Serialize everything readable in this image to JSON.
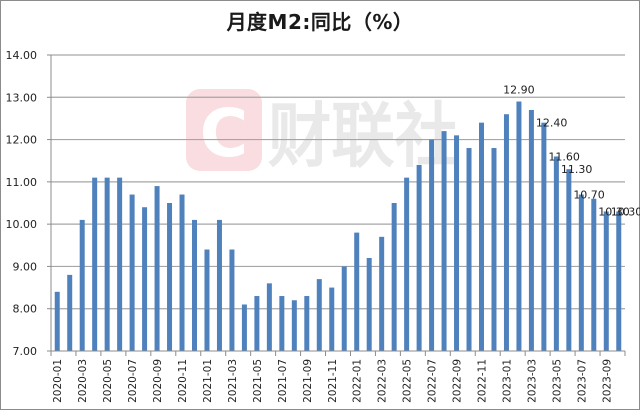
{
  "chart_data": {
    "type": "bar",
    "title": "月度M2:同比（%）",
    "xlabel": "",
    "ylabel": "",
    "ylim": [
      7,
      14
    ],
    "yticks": [
      "7.00",
      "8.00",
      "9.00",
      "10.00",
      "11.00",
      "12.00",
      "13.00",
      "14.00"
    ],
    "grid": true,
    "legend": null,
    "bar_color": "#4F81BD",
    "categories": [
      "2020-01",
      "2020-02",
      "2020-03",
      "2020-04",
      "2020-05",
      "2020-06",
      "2020-07",
      "2020-08",
      "2020-09",
      "2020-10",
      "2020-11",
      "2020-12",
      "2021-01",
      "2021-02",
      "2021-03",
      "2021-04",
      "2021-05",
      "2021-06",
      "2021-07",
      "2021-08",
      "2021-09",
      "2021-10",
      "2021-11",
      "2021-12",
      "2022-01",
      "2022-02",
      "2022-03",
      "2022-04",
      "2022-05",
      "2022-06",
      "2022-07",
      "2022-08",
      "2022-09",
      "2022-10",
      "2022-11",
      "2022-12",
      "2023-01",
      "2023-02",
      "2023-03",
      "2023-04",
      "2023-05",
      "2023-06",
      "2023-07",
      "2023-08",
      "2023-09",
      "2023-10"
    ],
    "values": [
      8.4,
      8.8,
      10.1,
      11.1,
      11.1,
      11.1,
      10.7,
      10.4,
      10.9,
      10.5,
      10.7,
      10.1,
      9.4,
      10.1,
      9.4,
      8.1,
      8.3,
      8.6,
      8.3,
      8.2,
      8.3,
      8.7,
      8.5,
      9.0,
      9.8,
      9.2,
      9.7,
      10.5,
      11.1,
      11.4,
      12.0,
      12.2,
      12.1,
      11.8,
      12.4,
      11.8,
      12.6,
      12.9,
      12.7,
      12.4,
      11.6,
      11.3,
      10.7,
      10.6,
      10.3,
      10.3
    ],
    "x_tick_labels_shown_every": 2,
    "data_labels": [
      {
        "category": "2023-02",
        "text": "12.90"
      },
      {
        "category": "2023-04",
        "text": "12.40"
      },
      {
        "category": "2023-05",
        "text": "11.60"
      },
      {
        "category": "2023-06",
        "text": "11.30"
      },
      {
        "category": "2023-07",
        "text": "10.70"
      },
      {
        "category": "2023-09",
        "text": "10.30"
      },
      {
        "category": "2023-10",
        "text": "10.30"
      }
    ]
  },
  "watermark": {
    "logo_letter": "C",
    "text": "财联社",
    "logo_color": "#F9D9DD"
  }
}
